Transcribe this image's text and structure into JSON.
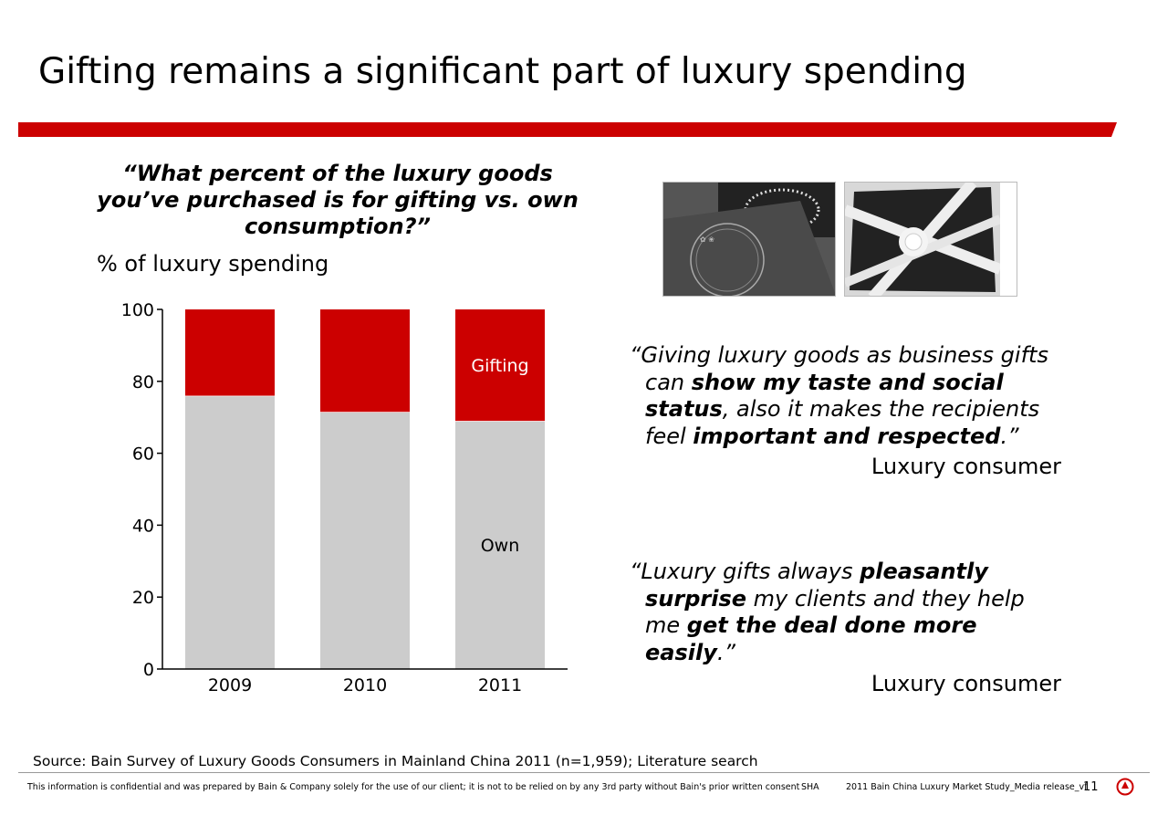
{
  "slide": {
    "title": "Gifting remains a significant part of luxury spending",
    "question_lines": [
      "“What percent of the luxury goods",
      "you’ve purchased is for gifting vs. own",
      "consumption?”"
    ],
    "units_label": "% of luxury spending"
  },
  "chart_data": {
    "type": "bar",
    "stacked": true,
    "categories": [
      "2009",
      "2010",
      "2011"
    ],
    "series": [
      {
        "name": "Own",
        "values": [
          76,
          71.5,
          69
        ],
        "color": "#cccccc"
      },
      {
        "name": "Gifting",
        "values": [
          24,
          28.5,
          31
        ],
        "color": "#cc0000"
      }
    ],
    "ylim": [
      0,
      100
    ],
    "yticks": [
      "0",
      "20",
      "40",
      "60",
      "80",
      "100"
    ],
    "series_labels_on": "2011",
    "title": "",
    "xlabel": "",
    "ylabel": ""
  },
  "quotes": [
    {
      "lines": [
        [
          {
            "t": "“Giving luxury goods as business gifts",
            "b": false
          }
        ],
        [
          {
            "t": "can ",
            "b": false
          },
          {
            "t": "show my taste and social",
            "b": true
          }
        ],
        [
          {
            "t": "status",
            "b": true
          },
          {
            "t": ", also it makes the recipients",
            "b": false
          }
        ],
        [
          {
            "t": "feel ",
            "b": false
          },
          {
            "t": "important and respected",
            "b": true
          },
          {
            "t": ".”",
            "b": false
          }
        ]
      ],
      "attribution": "Luxury consumer"
    },
    {
      "lines": [
        [
          {
            "t": "“Luxury gifts always ",
            "b": false
          },
          {
            "t": "pleasantly",
            "b": true
          }
        ],
        [
          {
            "t": "surprise",
            "b": true
          },
          {
            "t": " my clients and they help",
            "b": false
          }
        ],
        [
          {
            "t": "me ",
            "b": false
          },
          {
            "t": "get the deal done more",
            "b": true
          }
        ],
        [
          {
            "t": "easily",
            "b": true
          },
          {
            "t": ".”",
            "b": false
          }
        ]
      ],
      "attribution": "Luxury consumer"
    }
  ],
  "footer": {
    "source": "Source: Bain Survey of Luxury Goods Consumers in Mainland China 2011 (n=1,959); Literature search",
    "disclaimer": "This information is confidential and was prepared by Bain & Company solely for the use of our client; it is not to be relied on by any 3rd party without Bain's prior written consent",
    "office": "SHA",
    "doc_name": "2011 Bain China Luxury Market Study_Media release_vf",
    "page_number": "11"
  },
  "colors": {
    "accent": "#cc0000",
    "own": "#cccccc"
  }
}
